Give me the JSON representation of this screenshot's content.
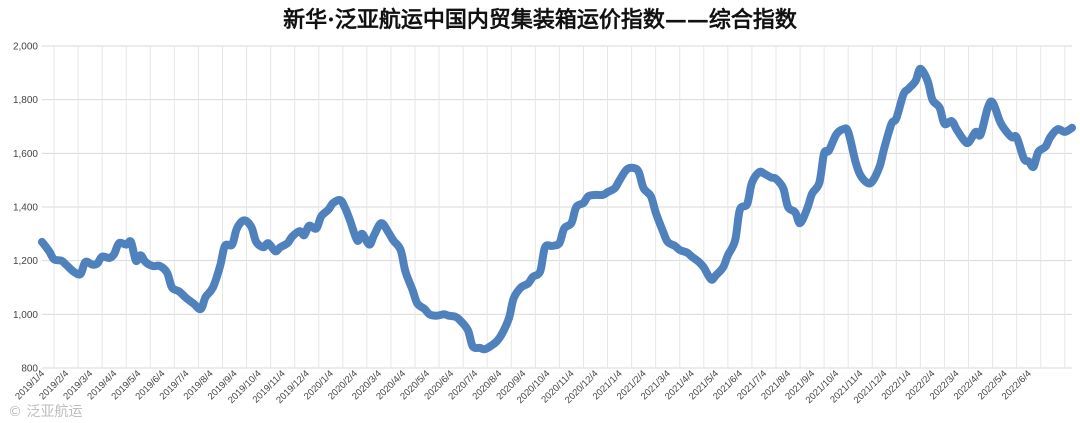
{
  "chart_data": {
    "type": "line",
    "title": "新华·泛亚航运中国内贸集装箱运价指数——综合指数",
    "ylim": [
      800,
      2000
    ],
    "yticks": [
      "800",
      "1,000",
      "1,200",
      "1,400",
      "1,600",
      "1,800",
      "2,000"
    ],
    "ytick_values": [
      800,
      1000,
      1200,
      1400,
      1600,
      1800,
      2000
    ],
    "xlabels": [
      "2019/1/4",
      "2019/2/4",
      "2019/3/4",
      "2019/4/4",
      "2019/5/4",
      "2019/6/4",
      "2019/7/4",
      "2019/8/4",
      "2019/9/4",
      "2019/10/4",
      "2019/11/4",
      "2019/12/4",
      "2020/1/4",
      "2020/2/4",
      "2020/3/4",
      "2020/4/4",
      "2020/5/4",
      "2020/6/4",
      "2020/7/4",
      "2020/8/4",
      "2020/9/4",
      "2020/10/4",
      "2020/11/4",
      "2020/12/4",
      "2021/1/4",
      "2021/2/4",
      "2021/3/4",
      "2021/4/4",
      "2021/5/4",
      "2021/6/4",
      "2021/7/4",
      "2021/8/4",
      "2021/9/4",
      "2021/10/4",
      "2021/11/4",
      "2021/12/4",
      "2022/1/4",
      "2022/2/4",
      "2022/3/4",
      "2022/4/4",
      "2022/5/4",
      "2022/6/4"
    ],
    "grid": true,
    "legend": "none",
    "series": [
      {
        "color": "#4f81bd",
        "points": [
          [
            0,
            1270
          ],
          [
            0.3,
            1235
          ],
          [
            0.5,
            1205
          ],
          [
            0.8,
            1200
          ],
          [
            1.0,
            1185
          ],
          [
            1.3,
            1160
          ],
          [
            1.6,
            1150
          ],
          [
            1.8,
            1195
          ],
          [
            2.1,
            1185
          ],
          [
            2.3,
            1190
          ],
          [
            2.5,
            1215
          ],
          [
            2.8,
            1210
          ],
          [
            3.0,
            1225
          ],
          [
            3.2,
            1265
          ],
          [
            3.5,
            1260
          ],
          [
            3.7,
            1270
          ],
          [
            3.9,
            1200
          ],
          [
            4.1,
            1220
          ],
          [
            4.3,
            1195
          ],
          [
            4.6,
            1180
          ],
          [
            4.9,
            1180
          ],
          [
            5.2,
            1155
          ],
          [
            5.4,
            1100
          ],
          [
            5.7,
            1085
          ],
          [
            6.0,
            1060
          ],
          [
            6.3,
            1040
          ],
          [
            6.6,
            1020
          ],
          [
            6.8,
            1065
          ],
          [
            7.1,
            1100
          ],
          [
            7.4,
            1180
          ],
          [
            7.6,
            1255
          ],
          [
            7.9,
            1260
          ],
          [
            8.1,
            1320
          ],
          [
            8.4,
            1350
          ],
          [
            8.7,
            1325
          ],
          [
            8.9,
            1270
          ],
          [
            9.2,
            1250
          ],
          [
            9.4,
            1265
          ],
          [
            9.7,
            1235
          ],
          [
            9.9,
            1250
          ],
          [
            10.2,
            1265
          ],
          [
            10.4,
            1290
          ],
          [
            10.7,
            1310
          ],
          [
            10.9,
            1295
          ],
          [
            11.1,
            1330
          ],
          [
            11.4,
            1320
          ],
          [
            11.6,
            1365
          ],
          [
            11.9,
            1390
          ],
          [
            12.1,
            1415
          ],
          [
            12.4,
            1425
          ],
          [
            12.6,
            1395
          ],
          [
            12.8,
            1350
          ],
          [
            13.1,
            1275
          ],
          [
            13.3,
            1300
          ],
          [
            13.6,
            1260
          ],
          [
            13.8,
            1295
          ],
          [
            14.1,
            1340
          ],
          [
            14.4,
            1305
          ],
          [
            14.6,
            1275
          ],
          [
            14.9,
            1240
          ],
          [
            15.1,
            1160
          ],
          [
            15.4,
            1090
          ],
          [
            15.6,
            1040
          ],
          [
            15.9,
            1020
          ],
          [
            16.1,
            1000
          ],
          [
            16.4,
            995
          ],
          [
            16.7,
            1000
          ],
          [
            16.9,
            995
          ],
          [
            17.2,
            990
          ],
          [
            17.4,
            975
          ],
          [
            17.7,
            940
          ],
          [
            17.9,
            880
          ],
          [
            18.2,
            875
          ],
          [
            18.4,
            870
          ],
          [
            18.7,
            885
          ],
          [
            18.9,
            900
          ],
          [
            19.1,
            925
          ],
          [
            19.4,
            985
          ],
          [
            19.6,
            1060
          ],
          [
            19.9,
            1100
          ],
          [
            20.2,
            1115
          ],
          [
            20.4,
            1140
          ],
          [
            20.7,
            1160
          ],
          [
            20.9,
            1250
          ],
          [
            21.2,
            1255
          ],
          [
            21.5,
            1265
          ],
          [
            21.7,
            1320
          ],
          [
            22.0,
            1340
          ],
          [
            22.2,
            1400
          ],
          [
            22.5,
            1415
          ],
          [
            22.7,
            1440
          ],
          [
            23.0,
            1445
          ],
          [
            23.3,
            1445
          ],
          [
            23.5,
            1455
          ],
          [
            23.8,
            1470
          ],
          [
            24.0,
            1500
          ],
          [
            24.3,
            1540
          ],
          [
            24.6,
            1545
          ],
          [
            24.8,
            1530
          ],
          [
            25.0,
            1470
          ],
          [
            25.3,
            1440
          ],
          [
            25.5,
            1380
          ],
          [
            25.8,
            1310
          ],
          [
            26.0,
            1270
          ],
          [
            26.3,
            1255
          ],
          [
            26.5,
            1240
          ],
          [
            26.8,
            1230
          ],
          [
            27.0,
            1215
          ],
          [
            27.3,
            1195
          ],
          [
            27.5,
            1175
          ],
          [
            27.8,
            1130
          ],
          [
            28.0,
            1145
          ],
          [
            28.3,
            1175
          ],
          [
            28.5,
            1220
          ],
          [
            28.8,
            1275
          ],
          [
            29.0,
            1390
          ],
          [
            29.3,
            1410
          ],
          [
            29.5,
            1490
          ],
          [
            29.8,
            1530
          ],
          [
            30.0,
            1525
          ],
          [
            30.3,
            1510
          ],
          [
            30.5,
            1505
          ],
          [
            30.8,
            1470
          ],
          [
            31.0,
            1400
          ],
          [
            31.3,
            1380
          ],
          [
            31.5,
            1340
          ],
          [
            31.8,
            1395
          ],
          [
            32.0,
            1450
          ],
          [
            32.3,
            1490
          ],
          [
            32.5,
            1600
          ],
          [
            32.7,
            1610
          ],
          [
            33.0,
            1670
          ],
          [
            33.3,
            1690
          ],
          [
            33.5,
            1680
          ],
          [
            33.8,
            1570
          ],
          [
            34.0,
            1520
          ],
          [
            34.3,
            1490
          ],
          [
            34.5,
            1495
          ],
          [
            34.8,
            1550
          ],
          [
            35.0,
            1620
          ],
          [
            35.3,
            1710
          ],
          [
            35.5,
            1730
          ],
          [
            35.8,
            1820
          ],
          [
            36.0,
            1840
          ],
          [
            36.3,
            1870
          ],
          [
            36.5,
            1915
          ],
          [
            36.8,
            1870
          ],
          [
            37.0,
            1800
          ],
          [
            37.3,
            1770
          ],
          [
            37.5,
            1710
          ],
          [
            37.8,
            1720
          ],
          [
            38.0,
            1690
          ],
          [
            38.3,
            1650
          ],
          [
            38.5,
            1640
          ],
          [
            38.8,
            1680
          ],
          [
            39.0,
            1670
          ],
          [
            39.3,
            1770
          ],
          [
            39.5,
            1790
          ],
          [
            39.8,
            1720
          ],
          [
            40.0,
            1690
          ],
          [
            40.3,
            1660
          ],
          [
            40.5,
            1660
          ],
          [
            40.8,
            1580
          ],
          [
            41.0,
            1570
          ],
          [
            41.2,
            1550
          ],
          [
            41.4,
            1605
          ],
          [
            41.7,
            1625
          ],
          [
            41.9,
            1660
          ],
          [
            42.2,
            1690
          ],
          [
            42.5,
            1680
          ],
          [
            42.8,
            1695
          ]
        ]
      }
    ]
  },
  "watermark": "© 泛亚航运"
}
